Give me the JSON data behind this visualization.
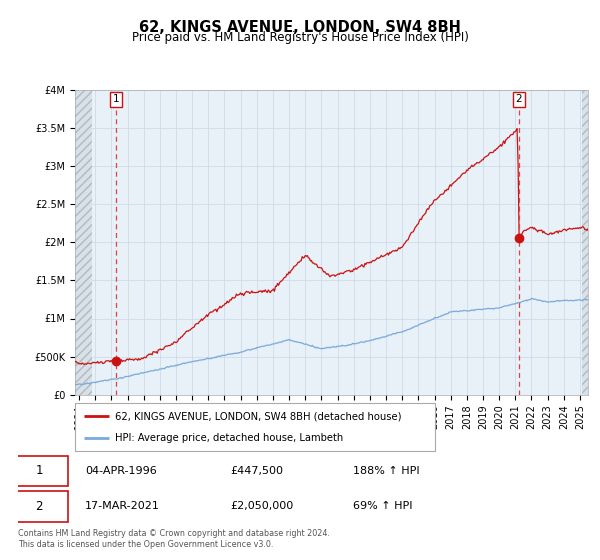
{
  "title": "62, KINGS AVENUE, LONDON, SW4 8BH",
  "subtitle": "Price paid vs. HM Land Registry's House Price Index (HPI)",
  "ylim": [
    0,
    4000000
  ],
  "xlim_start": 1993.75,
  "xlim_end": 2025.5,
  "yticks": [
    0,
    500000,
    1000000,
    1500000,
    2000000,
    2500000,
    3000000,
    3500000,
    4000000
  ],
  "ytick_labels": [
    "£0",
    "£500K",
    "£1M",
    "£1.5M",
    "£2M",
    "£2.5M",
    "£3M",
    "£3.5M",
    "£4M"
  ],
  "xticks": [
    1994,
    1995,
    1996,
    1997,
    1998,
    1999,
    2000,
    2001,
    2002,
    2003,
    2004,
    2005,
    2006,
    2007,
    2008,
    2009,
    2010,
    2011,
    2012,
    2013,
    2014,
    2015,
    2016,
    2017,
    2018,
    2019,
    2020,
    2021,
    2022,
    2023,
    2024,
    2025
  ],
  "purchase1_x": 1996.27,
  "purchase1_y": 447500,
  "purchase2_x": 2021.21,
  "purchase2_y": 2050000,
  "purchase1_date": "04-APR-1996",
  "purchase1_price": "£447,500",
  "purchase1_hpi": "188% ↑ HPI",
  "purchase2_date": "17-MAR-2021",
  "purchase2_price": "£2,050,000",
  "purchase2_hpi": "69% ↑ HPI",
  "hpi_line_color": "#7aaadd",
  "property_line_color": "#cc1111",
  "dashed_line_color": "#dd4444",
  "grid_color": "#c8d8e8",
  "legend_label1": "62, KINGS AVENUE, LONDON, SW4 8BH (detached house)",
  "legend_label2": "HPI: Average price, detached house, Lambeth",
  "footer": "Contains HM Land Registry data © Crown copyright and database right 2024.\nThis data is licensed under the Open Government Licence v3.0.",
  "plot_bg_color": "#e8f0f8",
  "hatch_bg_color": "#d8e0e8",
  "title_fontsize": 10.5,
  "subtitle_fontsize": 8.5,
  "tick_fontsize": 7
}
